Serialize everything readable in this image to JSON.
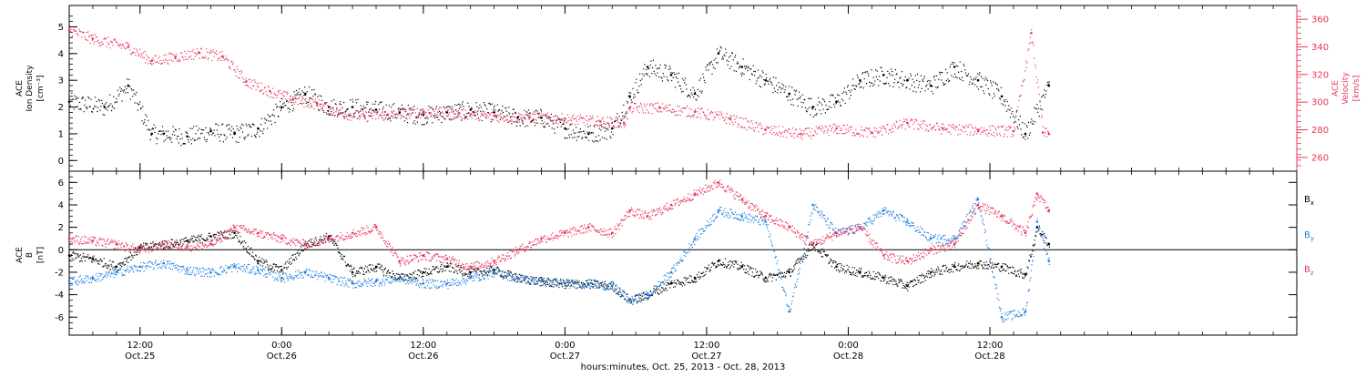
{
  "chart_data": [
    {
      "type": "scatter",
      "panel": "top",
      "ylabel_left": [
        "ACE",
        "Ion Density",
        "[cm⁻³]"
      ],
      "ylabel_right": [
        "ACE",
        "Velocity",
        "[km/s]"
      ],
      "ylim_left": [
        -0.4,
        5.8
      ],
      "yticks_left": [
        0,
        1,
        2,
        3,
        4,
        5
      ],
      "ylim_right": [
        250,
        370
      ],
      "yticks_right": [
        260,
        280,
        300,
        320,
        340,
        360
      ],
      "grid": false,
      "series": [
        {
          "name": "",
          "axis": "left",
          "color": "#000000",
          "x_hours": [
            0,
            3,
            5,
            7,
            8,
            10,
            12,
            14,
            16,
            18,
            20,
            22,
            24,
            26,
            28,
            30,
            32,
            34,
            36,
            38,
            40,
            42,
            44,
            46,
            47.5,
            49,
            51,
            53,
            55,
            57,
            59,
            61,
            63,
            65,
            67,
            69,
            71,
            73,
            75,
            77,
            79,
            81,
            83
          ],
          "values": [
            2.2,
            2.0,
            2.8,
            1.0,
            1.0,
            0.9,
            1.1,
            1.0,
            1.2,
            2.0,
            2.5,
            2.0,
            2.0,
            1.9,
            1.8,
            1.7,
            1.8,
            1.9,
            1.8,
            1.6,
            1.6,
            1.2,
            1.0,
            1.2,
            2.4,
            3.5,
            3.2,
            2.5,
            4.0,
            3.5,
            3.0,
            2.5,
            2.0,
            2.2,
            3.0,
            3.2,
            3.0,
            2.8,
            3.5,
            3.0,
            2.4,
            1.0,
            2.8
          ]
        },
        {
          "name": "",
          "axis": "right",
          "color": "#e8365c",
          "x_hours": [
            0,
            2,
            5,
            7,
            9,
            11,
            13,
            15,
            17,
            19,
            21,
            23,
            25,
            27,
            30,
            33,
            36,
            39,
            42,
            45,
            47,
            47.5,
            50,
            53,
            56,
            59,
            62,
            65,
            68,
            71,
            74,
            77,
            80,
            81.5,
            82.5,
            83
          ],
          "values": [
            352,
            346,
            340,
            330,
            333,
            336,
            333,
            315,
            308,
            302,
            299,
            292,
            290,
            291,
            293,
            292,
            290,
            289,
            288,
            286,
            285,
            296,
            296,
            293,
            288,
            280,
            277,
            281,
            278,
            285,
            281,
            280,
            279,
            350,
            278,
            277
          ]
        }
      ]
    },
    {
      "type": "scatter",
      "panel": "bottom",
      "ylabel_left": [
        "ACE",
        "B",
        "[nT]"
      ],
      "ylim": [
        -7.6,
        7.0
      ],
      "yticks": [
        -6,
        -4,
        -2,
        0,
        2,
        4,
        6
      ],
      "zero_line": true,
      "grid": false,
      "legend_position": "right",
      "series": [
        {
          "name": "Bx",
          "color": "#000000",
          "x_hours": [
            0,
            2,
            4,
            6,
            8,
            10,
            12,
            14,
            16,
            18,
            20,
            22,
            24,
            26,
            28,
            30,
            32,
            34,
            36,
            38,
            40,
            42,
            44,
            46,
            47.5,
            49,
            51,
            53,
            55,
            57,
            59,
            61,
            63,
            65,
            67,
            69,
            71,
            73,
            75,
            77,
            79,
            81,
            82,
            83
          ],
          "values": [
            -0.5,
            -0.8,
            -1.5,
            0.2,
            0.5,
            0.8,
            1.2,
            1.5,
            -1.0,
            -1.8,
            0.5,
            1.2,
            -2.0,
            -1.5,
            -2.5,
            -2.0,
            -1.5,
            -2.0,
            -1.8,
            -2.5,
            -2.8,
            -3.0,
            -3.0,
            -3.2,
            -4.5,
            -4.0,
            -3.0,
            -2.5,
            -1.0,
            -1.5,
            -2.5,
            -2.0,
            0.5,
            -1.5,
            -2.0,
            -2.5,
            -3.2,
            -2.0,
            -1.5,
            -1.2,
            -1.5,
            -2.2,
            2.0,
            0.5
          ]
        },
        {
          "name": "By",
          "color": "#1f7fe0",
          "x_hours": [
            0,
            2,
            4,
            6,
            8,
            10,
            12,
            14,
            16,
            18,
            20,
            22,
            24,
            26,
            28,
            30,
            32,
            34,
            36,
            38,
            40,
            42,
            44,
            46,
            47.5,
            49,
            51,
            53,
            55,
            57,
            59,
            61,
            63,
            65,
            67,
            69,
            71,
            73,
            75,
            77,
            79,
            81,
            82,
            83
          ],
          "values": [
            -2.8,
            -2.5,
            -2.0,
            -1.5,
            -1.2,
            -1.8,
            -2.0,
            -1.5,
            -1.8,
            -2.5,
            -2.0,
            -2.5,
            -3.0,
            -2.8,
            -2.5,
            -3.0,
            -3.0,
            -2.5,
            -2.0,
            -2.5,
            -2.8,
            -3.0,
            -3.0,
            -3.2,
            -4.5,
            -4.0,
            -2.0,
            1.0,
            3.5,
            3.0,
            2.5,
            -5.5,
            4.0,
            1.5,
            2.0,
            3.5,
            2.5,
            1.0,
            1.0,
            4.5,
            -6.0,
            -5.5,
            2.5,
            -1.0
          ]
        },
        {
          "name": "Bz",
          "color": "#e8365c",
          "x_hours": [
            0,
            2,
            4,
            6,
            8,
            10,
            12,
            14,
            16,
            18,
            20,
            22,
            24,
            26,
            28,
            30,
            32,
            34,
            36,
            38,
            40,
            42,
            44,
            46,
            47.5,
            49,
            51,
            53,
            55,
            57,
            59,
            61,
            63,
            65,
            67,
            69,
            71,
            73,
            75,
            77,
            79,
            81,
            82,
            83
          ],
          "values": [
            1.0,
            0.8,
            0.5,
            0.0,
            0.5,
            0.3,
            0.5,
            2.0,
            1.5,
            1.0,
            0.5,
            1.0,
            1.5,
            2.0,
            -1.0,
            -0.5,
            -0.8,
            -1.5,
            -1.0,
            0.0,
            1.0,
            1.5,
            2.0,
            1.5,
            3.5,
            3.0,
            4.0,
            5.0,
            6.0,
            4.5,
            3.0,
            2.0,
            0.5,
            1.5,
            2.0,
            -0.5,
            -1.0,
            0.0,
            0.5,
            4.0,
            3.0,
            1.5,
            5.0,
            3.5
          ]
        }
      ]
    }
  ],
  "axis": {
    "xlim_hours": [
      0,
      104
    ],
    "major_ticks": [
      {
        "hour": 6,
        "time": "12:00",
        "date": "Oct.25"
      },
      {
        "hour": 18,
        "time": "0:00",
        "date": "Oct.26"
      },
      {
        "hour": 30,
        "time": "12:00",
        "date": "Oct.26"
      },
      {
        "hour": 42,
        "time": "0:00",
        "date": "Oct.27"
      },
      {
        "hour": 54,
        "time": "12:00",
        "date": "Oct.27"
      },
      {
        "hour": 66,
        "time": "0:00",
        "date": "Oct.28"
      },
      {
        "hour": 78,
        "time": "12:00",
        "date": "Oct.28"
      }
    ],
    "xlabel": "hours:minutes, Oct. 25, 2013 - Oct. 28, 2013"
  },
  "legend": {
    "bx": {
      "base": "B",
      "sub": "x"
    },
    "by": {
      "base": "B",
      "sub": "y"
    },
    "bz": {
      "base": "B",
      "sub": "z"
    }
  },
  "colors": {
    "black": "#000000",
    "red": "#e8365c",
    "blue": "#1f7fe0"
  }
}
